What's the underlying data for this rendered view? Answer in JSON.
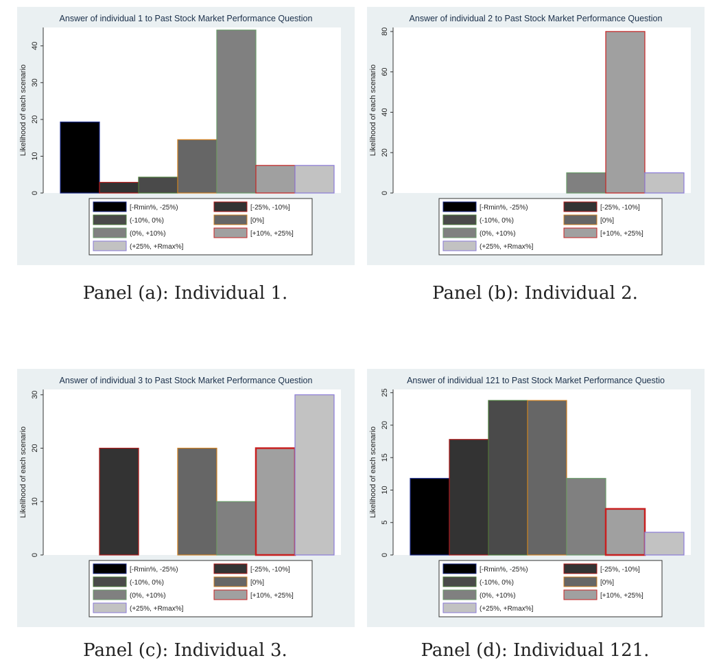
{
  "legend_labels": [
    "[-Rmin%, -25%)",
    "[-25%, -10%]",
    "(-10%, 0%)",
    "[0%]",
    "(0%, +10%)",
    "[+10%, +25%]",
    "(+25%, +Rmax%]"
  ],
  "series_colors": {
    "fill": [
      "#000000",
      "#333333",
      "#4a4a4a",
      "#666666",
      "#808080",
      "#a0a0a0",
      "#c2c2c2"
    ],
    "stroke": [
      "#1a2a88",
      "#b01818",
      "#4a7a3a",
      "#d08020",
      "#6a9a6a",
      "#c82020",
      "#8a7ad8"
    ]
  },
  "captions": [
    "Panel (a): Individual 1.",
    "Panel (b): Individual 2.",
    "Panel (c): Individual 3.",
    "Panel (d): Individual 121."
  ],
  "chart_data": [
    {
      "type": "bar",
      "title": "Answer of individual 1 to Past Stock Market Performance Question",
      "ylabel": "Likelihood of each scenario",
      "categories": [
        "[-Rmin%, -25%)",
        "[-25%, -10%]",
        "(-10%, 0%)",
        "[0%]",
        "(0%, +10%)",
        "[+10%, +25%]",
        "(+25%, +Rmax%]"
      ],
      "values": [
        19.3,
        2.9,
        4.3,
        14.5,
        44.3,
        7.5,
        7.5
      ],
      "ylim": [
        0,
        45
      ],
      "yticks": [
        0,
        10,
        20,
        30,
        40
      ],
      "legend": "bottom",
      "grid": false
    },
    {
      "type": "bar",
      "title": "Answer of individual 2 to Past Stock Market Performance Question",
      "ylabel": "Likelihood of each scenario",
      "categories": [
        "[-Rmin%, -25%)",
        "[-25%, -10%]",
        "(-10%, 0%)",
        "[0%]",
        "(0%, +10%)",
        "[+10%, +25%]",
        "(+25%, +Rmax%]"
      ],
      "values": [
        0,
        0,
        0,
        0,
        10,
        80,
        10
      ],
      "ylim": [
        0,
        82
      ],
      "yticks": [
        0,
        20,
        40,
        60,
        80
      ],
      "legend": "bottom",
      "grid": false
    },
    {
      "type": "bar",
      "title": "Answer of individual 3 to Past Stock Market Performance Question",
      "ylabel": "Likelihood of each scenario",
      "categories": [
        "[-Rmin%, -25%)",
        "[-25%, -10%]",
        "(-10%, 0%)",
        "[0%]",
        "(0%, +10%)",
        "[+10%, +25%]",
        "(+25%, +Rmax%]"
      ],
      "values": [
        0,
        20,
        0,
        20,
        10,
        20,
        30
      ],
      "ylim": [
        0,
        31
      ],
      "yticks": [
        0,
        10,
        20,
        30
      ],
      "legend": "bottom",
      "grid": false
    },
    {
      "type": "bar",
      "title": "Answer of individual 121 to Past Stock Market Performance Questio",
      "ylabel": "Likelihood of each scenario",
      "categories": [
        "[-Rmin%, -25%)",
        "[-25%, -10%]",
        "(-10%, 0%)",
        "[0%]",
        "(0%, +10%)",
        "[+10%, +25%]",
        "(+25%, +Rmax%]"
      ],
      "values": [
        11.8,
        17.8,
        23.8,
        23.8,
        11.8,
        7.1,
        3.5
      ],
      "ylim": [
        0,
        25.5
      ],
      "yticks": [
        0,
        5,
        10,
        15,
        20,
        25
      ],
      "legend": "bottom",
      "grid": false
    }
  ]
}
